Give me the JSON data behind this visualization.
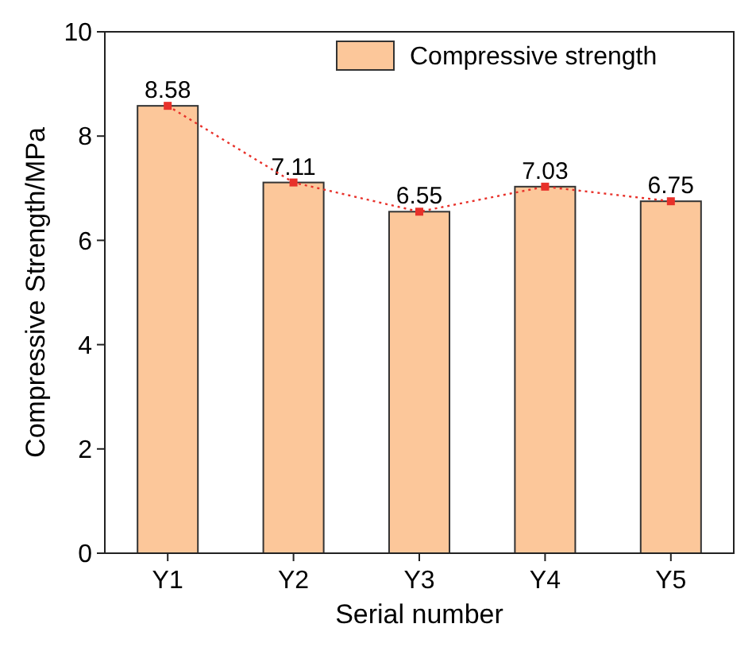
{
  "chart_data": {
    "type": "bar",
    "xlabel": "Serial number",
    "ylabel": "Compressive Strength/MPa",
    "categories": [
      "Y1",
      "Y2",
      "Y3",
      "Y4",
      "Y5"
    ],
    "series": [
      {
        "name": "Compressive strength",
        "color": "#fcc79a",
        "values": [
          8.58,
          7.11,
          6.55,
          7.03,
          6.75
        ],
        "value_labels": [
          "8.58",
          "7.11",
          "6.55",
          "7.03",
          "6.75"
        ]
      },
      {
        "type": "line",
        "color": "#e8312a",
        "values": [
          8.58,
          7.11,
          6.55,
          7.03,
          6.75
        ],
        "marker": "square",
        "line_style": "dotted"
      }
    ],
    "ylim": [
      0,
      10
    ],
    "yticks": [
      0,
      2,
      4,
      6,
      8,
      10
    ],
    "legend": "top right",
    "grid": false
  }
}
